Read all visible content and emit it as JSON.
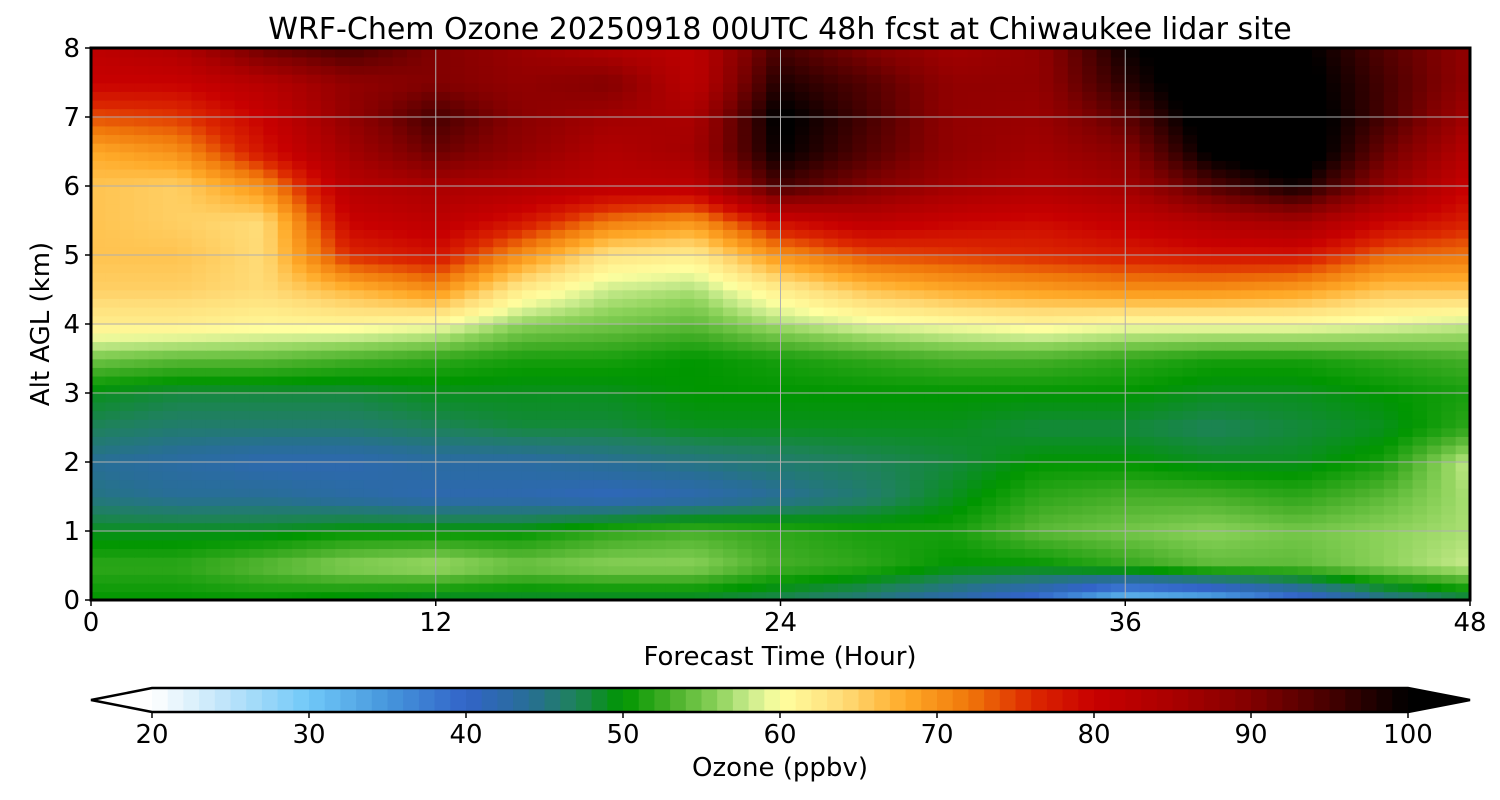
{
  "chart_data": {
    "type": "heatmap",
    "title": "WRF-Chem Ozone  20250918 00UTC 48h fcst at Chiwaukee lidar site",
    "xlabel": "Forecast Time (Hour)",
    "ylabel": "Alt AGL (km)",
    "xlim": [
      0,
      48
    ],
    "ylim": [
      0,
      8
    ],
    "xticks": [
      "0",
      "12",
      "24",
      "36",
      "48"
    ],
    "yticks": [
      "0",
      "1",
      "2",
      "3",
      "4",
      "5",
      "6",
      "7",
      "8"
    ],
    "grid": true,
    "x": [
      0,
      3,
      6,
      9,
      12,
      15,
      18,
      21,
      24,
      27,
      30,
      33,
      36,
      39,
      42,
      45,
      48
    ],
    "y": [
      0,
      0.5,
      1,
      1.5,
      2,
      2.5,
      3,
      3.5,
      4,
      4.5,
      5,
      5.5,
      6,
      6.5,
      7,
      7.5,
      8
    ],
    "z": [
      [
        50,
        50,
        50,
        49,
        48,
        48,
        48,
        48,
        47,
        45,
        42,
        38,
        30,
        32,
        38,
        44,
        47
      ],
      [
        52,
        52,
        54,
        56,
        57,
        55,
        56,
        56,
        53,
        52,
        50,
        50,
        52,
        54,
        54,
        56,
        58
      ],
      [
        49,
        49,
        49,
        50,
        50,
        50,
        52,
        53,
        52,
        51,
        51,
        54,
        55,
        56,
        55,
        56,
        57
      ],
      [
        45,
        44,
        44,
        43,
        42,
        42,
        41,
        42,
        44,
        46,
        49,
        52,
        53,
        53,
        52,
        54,
        57
      ],
      [
        44,
        43,
        42,
        42,
        43,
        43,
        44,
        45,
        46,
        47,
        48,
        50,
        50,
        49,
        49,
        51,
        58
      ],
      [
        47,
        46,
        46,
        46,
        47,
        48,
        48,
        49,
        49,
        49,
        49,
        48,
        48,
        47,
        48,
        49,
        52
      ],
      [
        49,
        48,
        48,
        48,
        49,
        49,
        49,
        50,
        50,
        50,
        50,
        50,
        50,
        49,
        49,
        50,
        51
      ],
      [
        55,
        54,
        54,
        53,
        52,
        51,
        51,
        50,
        51,
        52,
        53,
        53,
        52,
        51,
        51,
        52,
        53
      ],
      [
        62,
        62,
        61,
        61,
        60,
        56,
        55,
        54,
        57,
        59,
        60,
        61,
        60,
        60,
        60,
        59,
        58
      ],
      [
        65,
        65,
        64,
        67,
        70,
        62,
        58,
        57,
        62,
        66,
        68,
        69,
        70,
        70,
        69,
        66,
        66
      ],
      [
        66,
        66,
        64,
        76,
        78,
        70,
        63,
        62,
        70,
        74,
        75,
        76,
        77,
        78,
        78,
        73,
        72
      ],
      [
        66,
        65,
        64,
        80,
        82,
        78,
        72,
        70,
        79,
        82,
        80,
        79,
        81,
        84,
        86,
        80,
        77
      ],
      [
        66,
        65,
        70,
        83,
        85,
        84,
        82,
        82,
        95,
        90,
        86,
        84,
        86,
        94,
        99,
        88,
        80
      ],
      [
        68,
        70,
        78,
        86,
        92,
        88,
        84,
        86,
        100,
        94,
        88,
        86,
        89,
        101,
        104,
        92,
        83
      ],
      [
        74,
        75,
        80,
        88,
        95,
        89,
        86,
        85,
        101,
        95,
        88,
        87,
        93,
        103,
        103,
        95,
        86
      ],
      [
        80,
        80,
        83,
        88,
        90,
        88,
        90,
        82,
        98,
        94,
        88,
        88,
        97,
        104,
        102,
        95,
        88
      ],
      [
        82,
        84,
        92,
        95,
        90,
        87,
        84,
        82,
        95,
        90,
        86,
        88,
        99,
        104,
        101,
        94,
        88
      ]
    ],
    "colorbar": {
      "label": "Ozone  (ppbv)",
      "min": 20,
      "max": 100,
      "extend": "both",
      "ticks": [
        "20",
        "30",
        "40",
        "50",
        "60",
        "70",
        "80",
        "90",
        "100"
      ]
    }
  }
}
